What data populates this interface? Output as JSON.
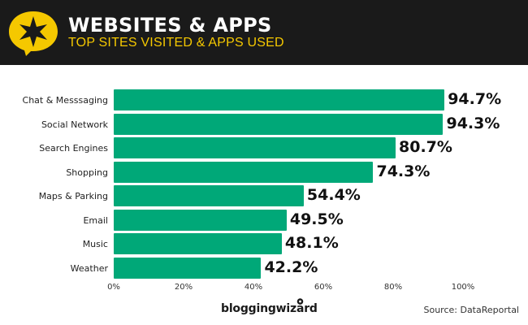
{
  "header": {
    "title": "WEBSITES & APPS",
    "subtitle": "TOP SITES VISITED & APPS USED",
    "icon": "star-speech-bubble-icon",
    "background_color": "#1a1a1a",
    "accent_color": "#f5c800"
  },
  "footer": {
    "brand": "bloggingwizard",
    "source": "Source: DataReportal"
  },
  "colors": {
    "bar": "#00a878"
  },
  "chart_data": {
    "type": "bar",
    "orientation": "horizontal",
    "title": "WEBSITES & APPS",
    "subtitle": "TOP SITES VISITED & APPS USED",
    "categories": [
      "Chat & Messsaging",
      "Social Network",
      "Search Engines",
      "Shopping",
      "Maps & Parking",
      "Email",
      "Music",
      "Weather"
    ],
    "values": [
      94.7,
      94.3,
      80.7,
      74.3,
      54.4,
      49.5,
      48.1,
      42.2
    ],
    "value_labels": [
      "94.7%",
      "94.3%",
      "80.7%",
      "74.3%",
      "54.4%",
      "49.5%",
      "48.1%",
      "42.2%"
    ],
    "xlabel": "",
    "ylabel": "",
    "xlim": [
      0,
      100
    ],
    "x_ticks": [
      "0%",
      "20%",
      "40%",
      "60%",
      "80%",
      "100%"
    ],
    "grid": false,
    "legend": null,
    "source": "Source: DataReportal"
  }
}
